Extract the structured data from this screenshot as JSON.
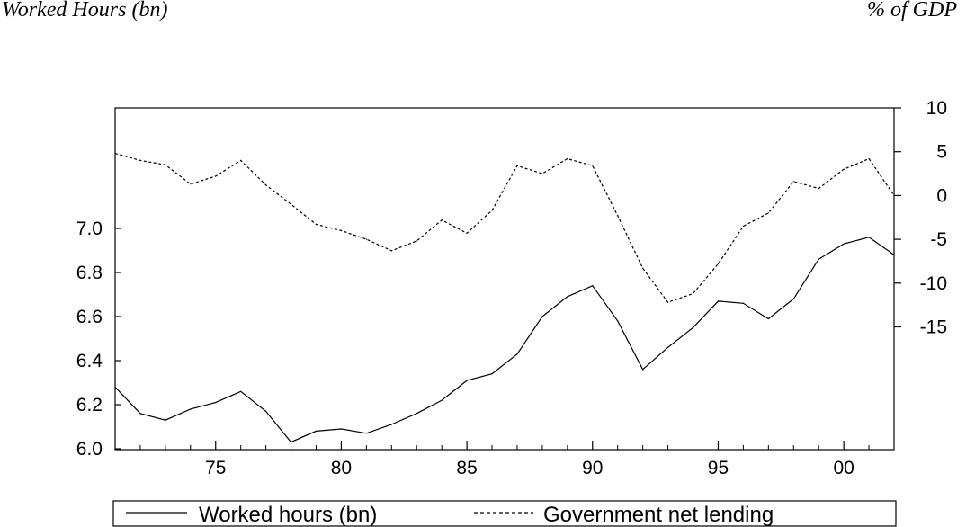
{
  "left_axis_title": "Worked Hours (bn)",
  "right_axis_title": "% of GDP",
  "chart_data": {
    "type": "line",
    "x": [
      1971,
      1972,
      1973,
      1974,
      1975,
      1976,
      1977,
      1978,
      1979,
      1980,
      1981,
      1982,
      1983,
      1984,
      1985,
      1986,
      1987,
      1988,
      1989,
      1990,
      1991,
      1992,
      1993,
      1994,
      1995,
      1996,
      1997,
      1998,
      1999,
      2000,
      2001,
      2002
    ],
    "x_ticks": [
      1975,
      1980,
      1985,
      1990,
      1995,
      2000
    ],
    "x_tick_labels": [
      "75",
      "80",
      "85",
      "90",
      "95",
      "00"
    ],
    "xlim": [
      1971,
      2002
    ],
    "left_axis": {
      "ylabel": "Worked Hours (bn)",
      "ylim": [
        6.0,
        7.0
      ],
      "ticks": [
        "6.0",
        "6.2",
        "6.4",
        "6.6",
        "6.8",
        "7.0"
      ]
    },
    "right_axis": {
      "ylabel": "% of GDP",
      "ylim": [
        -15,
        10
      ],
      "ticks": [
        "-15",
        "-10",
        "-5",
        "0",
        "5",
        "10"
      ]
    },
    "series": [
      {
        "name": "Worked hours (bn)",
        "axis": "left",
        "style": "solid",
        "values": [
          6.28,
          6.16,
          6.13,
          6.18,
          6.21,
          6.26,
          6.17,
          6.03,
          6.08,
          6.09,
          6.07,
          6.11,
          6.16,
          6.22,
          6.31,
          6.34,
          6.43,
          6.6,
          6.69,
          6.74,
          6.58,
          6.36,
          6.46,
          6.55,
          6.67,
          6.66,
          6.59,
          6.68,
          6.86,
          6.93,
          6.96,
          6.88
        ]
      },
      {
        "name": "Government net lending",
        "axis": "right",
        "style": "dashed",
        "values": [
          4.8,
          4.0,
          3.5,
          1.3,
          2.2,
          4.0,
          1.2,
          -1.0,
          -3.3,
          -4.0,
          -5.0,
          -6.3,
          -5.2,
          -2.8,
          -4.3,
          -1.7,
          3.4,
          2.5,
          4.2,
          3.4,
          -2.3,
          -8.3,
          -12.2,
          -11.2,
          -7.8,
          -3.5,
          -2.0,
          1.6,
          0.8,
          3.0,
          4.2,
          0.0
        ]
      }
    ],
    "grid": false,
    "legend": "bottom-center"
  }
}
